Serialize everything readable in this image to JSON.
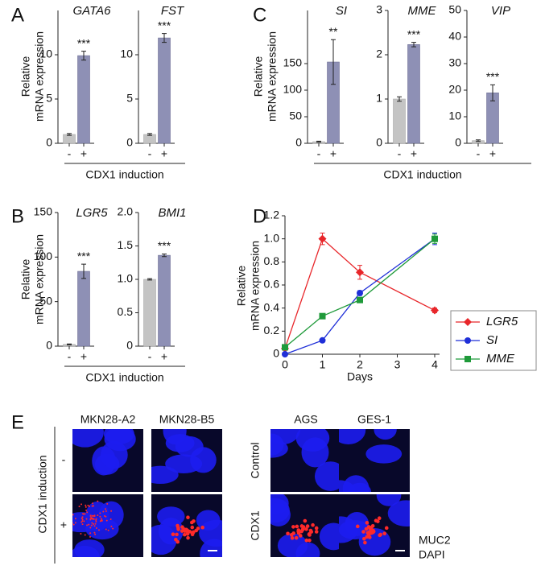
{
  "figure": {
    "panel_labels": [
      "A",
      "B",
      "C",
      "D",
      "E"
    ],
    "ylabel": [
      "Relative",
      "mRNA expression"
    ],
    "xlabel": "CDX1 induction"
  },
  "chart_data": [
    {
      "type": "bar",
      "title": "GATA6",
      "categories": [
        "-",
        "+"
      ],
      "values": [
        1.0,
        9.9
      ],
      "errors": [
        0.1,
        0.5
      ],
      "significance": "***",
      "colors": [
        "#c4c4c4",
        "#8e90b5"
      ],
      "ylim": [
        0,
        15
      ],
      "yticks": [
        0,
        5,
        10
      ]
    },
    {
      "type": "bar",
      "title": "FST",
      "categories": [
        "-",
        "+"
      ],
      "values": [
        1.0,
        11.9
      ],
      "errors": [
        0.1,
        0.5
      ],
      "significance": "***",
      "colors": [
        "#c4c4c4",
        "#8e90b5"
      ],
      "ylim": [
        0,
        15
      ],
      "yticks": [
        0,
        5,
        10
      ]
    },
    {
      "type": "bar",
      "title": "SI",
      "categories": [
        "-",
        "+"
      ],
      "values": [
        3,
        153
      ],
      "errors": [
        1,
        42
      ],
      "significance": "**",
      "colors": [
        "#c4c4c4",
        "#8e90b5"
      ],
      "ylim": [
        0,
        250
      ],
      "yticks": [
        0,
        50,
        100,
        150
      ]
    },
    {
      "type": "bar",
      "title": "MME",
      "categories": [
        "-",
        "+"
      ],
      "values": [
        1.0,
        2.23
      ],
      "errors": [
        0.05,
        0.05
      ],
      "significance": "***",
      "colors": [
        "#c4c4c4",
        "#8e90b5"
      ],
      "ylim": [
        0,
        3
      ],
      "yticks": [
        0,
        1,
        2,
        3
      ]
    },
    {
      "type": "bar",
      "title": "VIP",
      "categories": [
        "-",
        "+"
      ],
      "values": [
        1,
        19
      ],
      "errors": [
        0.3,
        3
      ],
      "significance": "***",
      "colors": [
        "#c4c4c4",
        "#8e90b5"
      ],
      "ylim": [
        0,
        50
      ],
      "yticks": [
        0,
        10,
        20,
        30,
        40,
        50
      ]
    },
    {
      "type": "bar",
      "title": "LGR5",
      "categories": [
        "-",
        "+"
      ],
      "values": [
        2,
        84
      ],
      "errors": [
        0.5,
        8
      ],
      "significance": "***",
      "colors": [
        "#c4c4c4",
        "#8e90b5"
      ],
      "ylim": [
        0,
        150
      ],
      "yticks": [
        0,
        50,
        100,
        150
      ]
    },
    {
      "type": "bar",
      "title": "BMI1",
      "categories": [
        "-",
        "+"
      ],
      "values": [
        1.0,
        1.36
      ],
      "errors": [
        0.01,
        0.02
      ],
      "significance": "***",
      "colors": [
        "#c4c4c4",
        "#8e90b5"
      ],
      "ylim": [
        0,
        2
      ],
      "yticks": [
        0,
        0.5,
        {
          "value": 1,
          "label": "1.0"
        },
        1.5,
        {
          "value": 2,
          "label": "2.0"
        }
      ]
    },
    {
      "type": "line",
      "xlabel": "Days",
      "x": [
        0,
        1,
        2,
        4
      ],
      "xlim": [
        0,
        4
      ],
      "xticks": [
        0,
        1,
        2,
        3,
        4
      ],
      "ylim": [
        0,
        1.2
      ],
      "yticks": [
        0,
        0.2,
        0.4,
        0.6,
        0.8,
        {
          "value": 1,
          "label": "1.0"
        },
        1.2
      ],
      "legend": "right",
      "series": [
        {
          "name": "LGR5",
          "color": "#e8262a",
          "marker": "diamond",
          "values": [
            0.05,
            1.0,
            0.71,
            0.38
          ],
          "errors": [
            0.01,
            0.05,
            0.06,
            0.02
          ]
        },
        {
          "name": "SI",
          "color": "#1f2fd8",
          "marker": "circle",
          "values": [
            0,
            0.12,
            0.53,
            1.0
          ],
          "errors": [
            0.005,
            0.01,
            0.02,
            0.05
          ]
        },
        {
          "name": "MME",
          "color": "#1f9a3a",
          "marker": "square",
          "values": [
            0.06,
            0.33,
            0.47,
            1.0
          ],
          "errors": [
            0.005,
            0.01,
            0.02,
            0.04
          ]
        }
      ]
    }
  ],
  "images": {
    "columns": [
      "MKN28-A2",
      "MKN28-B5",
      "AGS",
      "GES-1"
    ],
    "row_label": "CDX1 induction",
    "rows_left": [
      "-",
      "+"
    ],
    "rows_right": [
      "Control",
      "CDX1"
    ],
    "stains": [
      {
        "text": "MUC2",
        "color": "#e8262a"
      },
      {
        "text": "DAPI",
        "color": "#1f2fd8"
      }
    ]
  }
}
